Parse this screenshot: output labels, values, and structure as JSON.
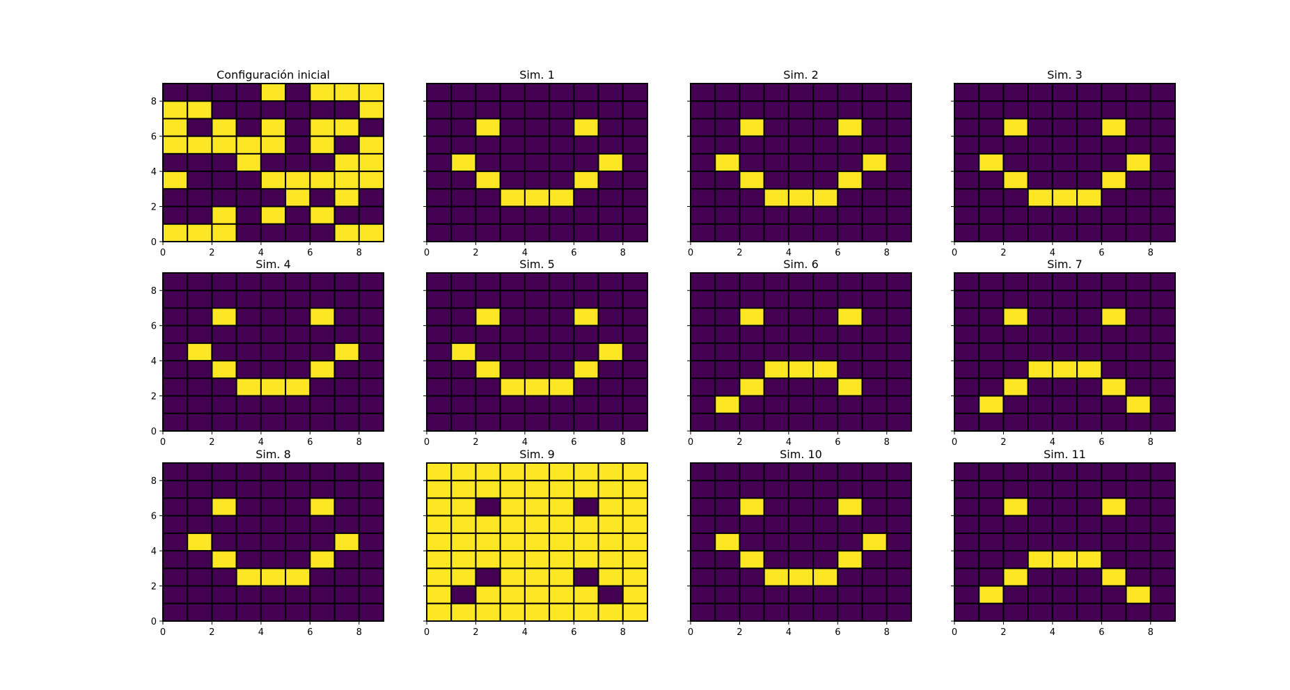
{
  "chart_data": {
    "type": "heatmap",
    "colors": {
      "on": "#fde725",
      "off": "#440154",
      "edge": "#000000"
    },
    "x_ticks": [
      0,
      2,
      4,
      6,
      8
    ],
    "y_ticks": [
      0,
      2,
      4,
      6,
      8
    ],
    "xlim": [
      0,
      9
    ],
    "ylim": [
      0,
      9
    ],
    "grid_size": [
      9,
      9
    ],
    "grid_rows_order": "top-to-bottom",
    "panels": [
      {
        "title": "Configuración inicial",
        "grid": [
          [
            0,
            0,
            0,
            0,
            1,
            0,
            1,
            1,
            1
          ],
          [
            1,
            1,
            0,
            0,
            0,
            0,
            0,
            0,
            1
          ],
          [
            1,
            0,
            1,
            0,
            1,
            0,
            1,
            1,
            0
          ],
          [
            1,
            1,
            1,
            1,
            1,
            0,
            1,
            0,
            1
          ],
          [
            0,
            0,
            0,
            1,
            0,
            0,
            0,
            1,
            1
          ],
          [
            1,
            0,
            0,
            0,
            1,
            1,
            1,
            1,
            1
          ],
          [
            0,
            0,
            0,
            0,
            0,
            1,
            0,
            1,
            0
          ],
          [
            0,
            0,
            1,
            0,
            1,
            0,
            1,
            0,
            0
          ],
          [
            1,
            1,
            1,
            0,
            0,
            0,
            0,
            1,
            1
          ]
        ]
      },
      {
        "title": "Sim. 1",
        "grid": [
          [
            0,
            0,
            0,
            0,
            0,
            0,
            0,
            0,
            0
          ],
          [
            0,
            0,
            0,
            0,
            0,
            0,
            0,
            0,
            0
          ],
          [
            0,
            0,
            1,
            0,
            0,
            0,
            1,
            0,
            0
          ],
          [
            0,
            0,
            0,
            0,
            0,
            0,
            0,
            0,
            0
          ],
          [
            0,
            1,
            0,
            0,
            0,
            0,
            0,
            1,
            0
          ],
          [
            0,
            0,
            1,
            0,
            0,
            0,
            1,
            0,
            0
          ],
          [
            0,
            0,
            0,
            1,
            1,
            1,
            0,
            0,
            0
          ],
          [
            0,
            0,
            0,
            0,
            0,
            0,
            0,
            0,
            0
          ],
          [
            0,
            0,
            0,
            0,
            0,
            0,
            0,
            0,
            0
          ]
        ]
      },
      {
        "title": "Sim. 2",
        "grid": [
          [
            0,
            0,
            0,
            0,
            0,
            0,
            0,
            0,
            0
          ],
          [
            0,
            0,
            0,
            0,
            0,
            0,
            0,
            0,
            0
          ],
          [
            0,
            0,
            1,
            0,
            0,
            0,
            1,
            0,
            0
          ],
          [
            0,
            0,
            0,
            0,
            0,
            0,
            0,
            0,
            0
          ],
          [
            0,
            1,
            0,
            0,
            0,
            0,
            0,
            1,
            0
          ],
          [
            0,
            0,
            1,
            0,
            0,
            0,
            1,
            0,
            0
          ],
          [
            0,
            0,
            0,
            1,
            1,
            1,
            0,
            0,
            0
          ],
          [
            0,
            0,
            0,
            0,
            0,
            0,
            0,
            0,
            0
          ],
          [
            0,
            0,
            0,
            0,
            0,
            0,
            0,
            0,
            0
          ]
        ]
      },
      {
        "title": "Sim. 3",
        "grid": [
          [
            0,
            0,
            0,
            0,
            0,
            0,
            0,
            0,
            0
          ],
          [
            0,
            0,
            0,
            0,
            0,
            0,
            0,
            0,
            0
          ],
          [
            0,
            0,
            1,
            0,
            0,
            0,
            1,
            0,
            0
          ],
          [
            0,
            0,
            0,
            0,
            0,
            0,
            0,
            0,
            0
          ],
          [
            0,
            1,
            0,
            0,
            0,
            0,
            0,
            1,
            0
          ],
          [
            0,
            0,
            1,
            0,
            0,
            0,
            1,
            0,
            0
          ],
          [
            0,
            0,
            0,
            1,
            1,
            1,
            0,
            0,
            0
          ],
          [
            0,
            0,
            0,
            0,
            0,
            0,
            0,
            0,
            0
          ],
          [
            0,
            0,
            0,
            0,
            0,
            0,
            0,
            0,
            0
          ]
        ]
      },
      {
        "title": "Sim. 4",
        "grid": [
          [
            0,
            0,
            0,
            0,
            0,
            0,
            0,
            0,
            0
          ],
          [
            0,
            0,
            0,
            0,
            0,
            0,
            0,
            0,
            0
          ],
          [
            0,
            0,
            1,
            0,
            0,
            0,
            1,
            0,
            0
          ],
          [
            0,
            0,
            0,
            0,
            0,
            0,
            0,
            0,
            0
          ],
          [
            0,
            1,
            0,
            0,
            0,
            0,
            0,
            1,
            0
          ],
          [
            0,
            0,
            1,
            0,
            0,
            0,
            1,
            0,
            0
          ],
          [
            0,
            0,
            0,
            1,
            1,
            1,
            0,
            0,
            0
          ],
          [
            0,
            0,
            0,
            0,
            0,
            0,
            0,
            0,
            0
          ],
          [
            0,
            0,
            0,
            0,
            0,
            0,
            0,
            0,
            0
          ]
        ]
      },
      {
        "title": "Sim. 5",
        "grid": [
          [
            0,
            0,
            0,
            0,
            0,
            0,
            0,
            0,
            0
          ],
          [
            0,
            0,
            0,
            0,
            0,
            0,
            0,
            0,
            0
          ],
          [
            0,
            0,
            1,
            0,
            0,
            0,
            1,
            0,
            0
          ],
          [
            0,
            0,
            0,
            0,
            0,
            0,
            0,
            0,
            0
          ],
          [
            0,
            1,
            0,
            0,
            0,
            0,
            0,
            1,
            0
          ],
          [
            0,
            0,
            1,
            0,
            0,
            0,
            1,
            0,
            0
          ],
          [
            0,
            0,
            0,
            1,
            1,
            1,
            0,
            0,
            0
          ],
          [
            0,
            0,
            0,
            0,
            0,
            0,
            0,
            0,
            0
          ],
          [
            0,
            0,
            0,
            0,
            0,
            0,
            0,
            0,
            0
          ]
        ]
      },
      {
        "title": "Sim. 6",
        "grid": [
          [
            0,
            0,
            0,
            0,
            0,
            0,
            0,
            0,
            0
          ],
          [
            0,
            0,
            0,
            0,
            0,
            0,
            0,
            0,
            0
          ],
          [
            0,
            0,
            1,
            0,
            0,
            0,
            1,
            0,
            0
          ],
          [
            0,
            0,
            0,
            0,
            0,
            0,
            0,
            0,
            0
          ],
          [
            0,
            0,
            0,
            0,
            0,
            0,
            0,
            0,
            0
          ],
          [
            0,
            0,
            0,
            1,
            1,
            1,
            0,
            0,
            0
          ],
          [
            0,
            0,
            1,
            0,
            0,
            0,
            1,
            0,
            0
          ],
          [
            0,
            1,
            0,
            0,
            0,
            0,
            0,
            0,
            0
          ],
          [
            0,
            0,
            0,
            0,
            0,
            0,
            0,
            0,
            0
          ]
        ]
      },
      {
        "title": "Sim. 7",
        "grid": [
          [
            0,
            0,
            0,
            0,
            0,
            0,
            0,
            0,
            0
          ],
          [
            0,
            0,
            0,
            0,
            0,
            0,
            0,
            0,
            0
          ],
          [
            0,
            0,
            1,
            0,
            0,
            0,
            1,
            0,
            0
          ],
          [
            0,
            0,
            0,
            0,
            0,
            0,
            0,
            0,
            0
          ],
          [
            0,
            0,
            0,
            0,
            0,
            0,
            0,
            0,
            0
          ],
          [
            0,
            0,
            0,
            1,
            1,
            1,
            0,
            0,
            0
          ],
          [
            0,
            0,
            1,
            0,
            0,
            0,
            1,
            0,
            0
          ],
          [
            0,
            1,
            0,
            0,
            0,
            0,
            0,
            1,
            0
          ],
          [
            0,
            0,
            0,
            0,
            0,
            0,
            0,
            0,
            0
          ]
        ]
      },
      {
        "title": "Sim. 8",
        "grid": [
          [
            0,
            0,
            0,
            0,
            0,
            0,
            0,
            0,
            0
          ],
          [
            0,
            0,
            0,
            0,
            0,
            0,
            0,
            0,
            0
          ],
          [
            0,
            0,
            1,
            0,
            0,
            0,
            1,
            0,
            0
          ],
          [
            0,
            0,
            0,
            0,
            0,
            0,
            0,
            0,
            0
          ],
          [
            0,
            1,
            0,
            0,
            0,
            0,
            0,
            1,
            0
          ],
          [
            0,
            0,
            1,
            0,
            0,
            0,
            1,
            0,
            0
          ],
          [
            0,
            0,
            0,
            1,
            1,
            1,
            0,
            0,
            0
          ],
          [
            0,
            0,
            0,
            0,
            0,
            0,
            0,
            0,
            0
          ],
          [
            0,
            0,
            0,
            0,
            0,
            0,
            0,
            0,
            0
          ]
        ]
      },
      {
        "title": "Sim. 9",
        "grid": [
          [
            1,
            1,
            1,
            1,
            1,
            1,
            1,
            1,
            1
          ],
          [
            1,
            1,
            1,
            1,
            1,
            1,
            1,
            1,
            1
          ],
          [
            1,
            1,
            0,
            1,
            1,
            1,
            0,
            1,
            1
          ],
          [
            1,
            1,
            1,
            1,
            1,
            1,
            1,
            1,
            1
          ],
          [
            1,
            1,
            1,
            1,
            1,
            1,
            1,
            1,
            1
          ],
          [
            1,
            1,
            1,
            1,
            1,
            1,
            1,
            1,
            1
          ],
          [
            1,
            1,
            0,
            1,
            1,
            1,
            0,
            1,
            1
          ],
          [
            1,
            0,
            1,
            1,
            1,
            1,
            1,
            0,
            1
          ],
          [
            1,
            1,
            1,
            1,
            1,
            1,
            1,
            1,
            1
          ]
        ]
      },
      {
        "title": "Sim. 10",
        "grid": [
          [
            0,
            0,
            0,
            0,
            0,
            0,
            0,
            0,
            0
          ],
          [
            0,
            0,
            0,
            0,
            0,
            0,
            0,
            0,
            0
          ],
          [
            0,
            0,
            1,
            0,
            0,
            0,
            1,
            0,
            0
          ],
          [
            0,
            0,
            0,
            0,
            0,
            0,
            0,
            0,
            0
          ],
          [
            0,
            1,
            0,
            0,
            0,
            0,
            0,
            1,
            0
          ],
          [
            0,
            0,
            1,
            0,
            0,
            0,
            1,
            0,
            0
          ],
          [
            0,
            0,
            0,
            1,
            1,
            1,
            0,
            0,
            0
          ],
          [
            0,
            0,
            0,
            0,
            0,
            0,
            0,
            0,
            0
          ],
          [
            0,
            0,
            0,
            0,
            0,
            0,
            0,
            0,
            0
          ]
        ]
      },
      {
        "title": "Sim. 11",
        "grid": [
          [
            0,
            0,
            0,
            0,
            0,
            0,
            0,
            0,
            0
          ],
          [
            0,
            0,
            0,
            0,
            0,
            0,
            0,
            0,
            0
          ],
          [
            0,
            0,
            1,
            0,
            0,
            0,
            1,
            0,
            0
          ],
          [
            0,
            0,
            0,
            0,
            0,
            0,
            0,
            0,
            0
          ],
          [
            0,
            0,
            0,
            0,
            0,
            0,
            0,
            0,
            0
          ],
          [
            0,
            0,
            0,
            1,
            1,
            1,
            0,
            0,
            0
          ],
          [
            0,
            0,
            1,
            0,
            0,
            0,
            1,
            0,
            0
          ],
          [
            0,
            1,
            0,
            0,
            0,
            0,
            0,
            1,
            0
          ],
          [
            0,
            0,
            0,
            0,
            0,
            0,
            0,
            0,
            0
          ]
        ]
      }
    ]
  }
}
